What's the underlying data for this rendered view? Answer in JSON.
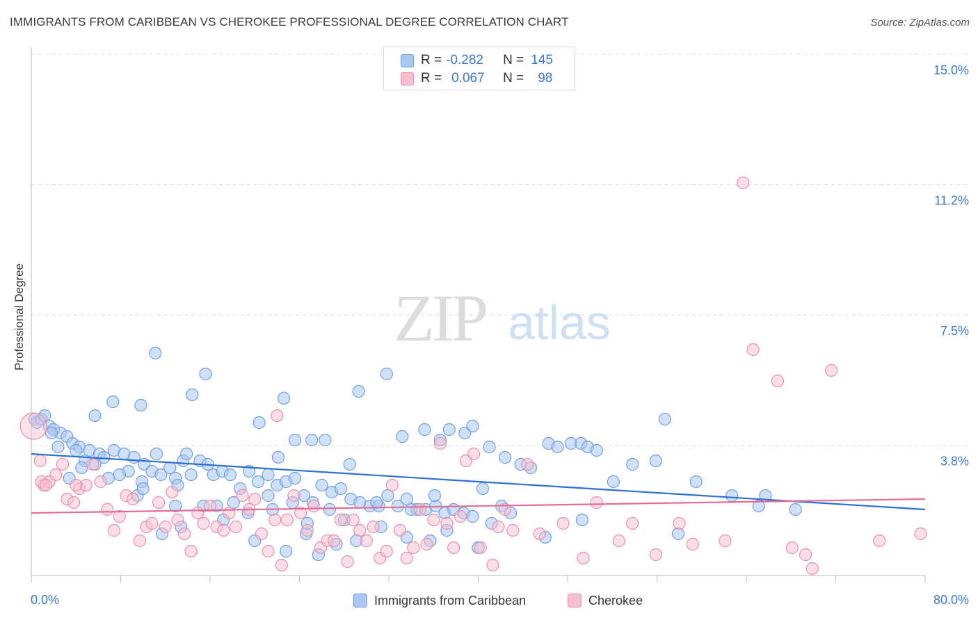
{
  "header": {
    "title": "IMMIGRANTS FROM CARIBBEAN VS CHEROKEE PROFESSIONAL DEGREE CORRELATION CHART",
    "source": "Source: ZipAtlas.com"
  },
  "watermark": {
    "zip": "ZIP",
    "atlas": "atlas"
  },
  "legend": {
    "rows": [
      {
        "r_label": "R =",
        "r_value": "-0.282",
        "n_label": "N =",
        "n_value": "145"
      },
      {
        "r_label": "R =",
        "r_value": "0.067",
        "n_label": "N =",
        "n_value": "98"
      }
    ]
  },
  "colors": {
    "blue_fill": "#aac8f0",
    "blue_stroke": "#6f9fe0",
    "blue_line": "#2a6fd4",
    "pink_fill": "#f6bfd0",
    "pink_stroke": "#ec8eaa",
    "pink_line": "#e46d95",
    "tick_label": "#3b78d0"
  },
  "chart_data": {
    "type": "scatter",
    "title": "IMMIGRANTS FROM CARIBBEAN VS CHEROKEE PROFESSIONAL DEGREE CORRELATION CHART",
    "xlabel": "",
    "ylabel": "Professional Degree",
    "xlim": [
      0,
      80
    ],
    "ylim": [
      0,
      15
    ],
    "x_tick_labels": [
      "0.0%",
      "80.0%"
    ],
    "y_ticks": [
      3.75,
      7.5,
      11.25,
      15.0
    ],
    "y_tick_labels": [
      "3.8%",
      "7.5%",
      "11.2%",
      "15.0%"
    ],
    "grid": true,
    "legend_position": "bottom",
    "series": [
      {
        "name": "Immigrants from Caribbean",
        "r": -0.282,
        "n": 145,
        "trend": [
          [
            0,
            3.5
          ],
          [
            80,
            1.9
          ]
        ],
        "points": [
          [
            0.3,
            4.5
          ],
          [
            0.5,
            4.4
          ],
          [
            0.9,
            4.5
          ],
          [
            1.2,
            4.6
          ],
          [
            1.6,
            4.3
          ],
          [
            2.0,
            4.2
          ],
          [
            2.6,
            4.1
          ],
          [
            3.2,
            4.0
          ],
          [
            1.8,
            4.1
          ],
          [
            2.4,
            3.7
          ],
          [
            3.7,
            3.8
          ],
          [
            4.3,
            3.7
          ],
          [
            5.2,
            3.6
          ],
          [
            6.1,
            3.5
          ],
          [
            4.0,
            3.6
          ],
          [
            5.7,
            3.2
          ],
          [
            3.4,
            2.8
          ],
          [
            4.8,
            3.3
          ],
          [
            6.5,
            3.4
          ],
          [
            7.4,
            3.6
          ],
          [
            8.3,
            3.5
          ],
          [
            9.2,
            3.4
          ],
          [
            10.1,
            3.2
          ],
          [
            8.7,
            3.0
          ],
          [
            7.9,
            2.9
          ],
          [
            9.9,
            2.7
          ],
          [
            10.8,
            3.0
          ],
          [
            11.6,
            2.9
          ],
          [
            12.4,
            3.1
          ],
          [
            11.2,
            3.5
          ],
          [
            12.9,
            2.8
          ],
          [
            13.6,
            3.3
          ],
          [
            14.3,
            2.9
          ],
          [
            13.1,
            2.6
          ],
          [
            15.1,
            3.3
          ],
          [
            15.8,
            3.2
          ],
          [
            16.3,
            2.9
          ],
          [
            17.1,
            3.0
          ],
          [
            17.8,
            2.9
          ],
          [
            18.7,
            2.5
          ],
          [
            19.5,
            3.0
          ],
          [
            20.3,
            2.7
          ],
          [
            21.2,
            2.9
          ],
          [
            22.0,
            2.6
          ],
          [
            22.8,
            2.7
          ],
          [
            23.6,
            2.8
          ],
          [
            24.4,
            2.3
          ],
          [
            25.2,
            2.1
          ],
          [
            26.0,
            2.6
          ],
          [
            26.9,
            2.4
          ],
          [
            27.7,
            2.5
          ],
          [
            28.6,
            2.2
          ],
          [
            29.4,
            2.1
          ],
          [
            30.3,
            2.0
          ],
          [
            31.1,
            2.0
          ],
          [
            31.9,
            2.3
          ],
          [
            32.8,
            2.0
          ],
          [
            33.6,
            2.2
          ],
          [
            34.5,
            1.9
          ],
          [
            35.3,
            1.9
          ],
          [
            36.2,
            2.0
          ],
          [
            37.0,
            1.8
          ],
          [
            37.8,
            1.9
          ],
          [
            38.7,
            1.8
          ],
          [
            39.5,
            1.7
          ],
          [
            40.4,
            2.5
          ],
          [
            41.2,
            1.5
          ],
          [
            42.1,
            2.0
          ],
          [
            42.9,
            1.8
          ],
          [
            11.1,
            6.4
          ],
          [
            15.6,
            5.8
          ],
          [
            14.4,
            5.2
          ],
          [
            7.3,
            5.0
          ],
          [
            9.8,
            4.9
          ],
          [
            5.7,
            4.6
          ],
          [
            20.4,
            4.4
          ],
          [
            22.6,
            5.1
          ],
          [
            29.3,
            5.3
          ],
          [
            31.8,
            5.8
          ],
          [
            23.6,
            3.9
          ],
          [
            22.1,
            3.4
          ],
          [
            25.1,
            3.9
          ],
          [
            28.5,
            3.2
          ],
          [
            26.3,
            3.9
          ],
          [
            33.2,
            4.0
          ],
          [
            35.2,
            4.2
          ],
          [
            36.6,
            3.9
          ],
          [
            37.4,
            4.2
          ],
          [
            38.8,
            4.1
          ],
          [
            39.5,
            4.3
          ],
          [
            41.0,
            3.7
          ],
          [
            42.4,
            3.4
          ],
          [
            43.8,
            3.2
          ],
          [
            44.7,
            3.1
          ],
          [
            46.3,
            3.8
          ],
          [
            47.1,
            3.7
          ],
          [
            48.3,
            3.8
          ],
          [
            49.2,
            3.8
          ],
          [
            49.8,
            3.7
          ],
          [
            50.6,
            3.6
          ],
          [
            52.1,
            2.7
          ],
          [
            53.8,
            3.2
          ],
          [
            55.9,
            3.3
          ],
          [
            56.7,
            4.5
          ],
          [
            59.5,
            2.7
          ],
          [
            62.7,
            2.3
          ],
          [
            65.7,
            2.3
          ],
          [
            65.1,
            2.0
          ],
          [
            68.4,
            1.9
          ],
          [
            57.9,
            1.2
          ],
          [
            46.0,
            1.1
          ],
          [
            49.3,
            1.6
          ],
          [
            40.0,
            0.8
          ],
          [
            29.1,
            1.0
          ],
          [
            25.7,
            0.6
          ],
          [
            22.8,
            0.7
          ],
          [
            11.7,
            1.2
          ],
          [
            13.4,
            1.4
          ],
          [
            17.2,
            1.6
          ],
          [
            20.0,
            1.0
          ],
          [
            24.6,
            1.2
          ],
          [
            27.3,
            0.9
          ],
          [
            31.3,
            1.4
          ],
          [
            33.6,
            1.1
          ],
          [
            35.7,
            1.0
          ],
          [
            37.2,
            1.3
          ],
          [
            28.0,
            1.6
          ],
          [
            16.6,
            2.0
          ],
          [
            9.5,
            2.3
          ],
          [
            18.1,
            2.1
          ],
          [
            10.0,
            2.5
          ],
          [
            6.9,
            2.8
          ],
          [
            4.5,
            3.1
          ],
          [
            13.9,
            3.5
          ],
          [
            12.9,
            2.0
          ],
          [
            24.7,
            1.5
          ],
          [
            19.4,
            1.8
          ],
          [
            15.4,
            2.0
          ],
          [
            26.7,
            1.9
          ],
          [
            23.4,
            2.1
          ],
          [
            21.2,
            2.3
          ],
          [
            21.6,
            1.9
          ],
          [
            30.9,
            2.1
          ],
          [
            34.0,
            1.9
          ],
          [
            36.1,
            2.3
          ]
        ]
      },
      {
        "name": "Cherokee",
        "r": 0.067,
        "n": 98,
        "trend": [
          [
            0,
            1.8
          ],
          [
            80,
            2.2
          ]
        ],
        "points": [
          [
            0.2,
            4.3
          ],
          [
            0.8,
            3.3
          ],
          [
            1.1,
            2.6
          ],
          [
            1.6,
            2.7
          ],
          [
            2.2,
            2.9
          ],
          [
            2.8,
            3.2
          ],
          [
            3.2,
            2.2
          ],
          [
            3.8,
            2.1
          ],
          [
            4.3,
            2.5
          ],
          [
            4.9,
            2.6
          ],
          [
            5.5,
            3.2
          ],
          [
            6.2,
            2.7
          ],
          [
            6.8,
            1.9
          ],
          [
            7.4,
            1.3
          ],
          [
            7.9,
            1.7
          ],
          [
            8.5,
            2.3
          ],
          [
            9.1,
            2.2
          ],
          [
            9.7,
            1.0
          ],
          [
            10.3,
            1.4
          ],
          [
            10.8,
            1.5
          ],
          [
            11.4,
            2.1
          ],
          [
            12.0,
            1.4
          ],
          [
            12.6,
            2.4
          ],
          [
            13.1,
            1.6
          ],
          [
            13.7,
            1.2
          ],
          [
            14.3,
            0.7
          ],
          [
            14.9,
            1.8
          ],
          [
            15.4,
            1.5
          ],
          [
            16.0,
            2.0
          ],
          [
            16.6,
            1.4
          ],
          [
            17.2,
            1.3
          ],
          [
            17.7,
            1.8
          ],
          [
            18.3,
            1.4
          ],
          [
            18.9,
            2.3
          ],
          [
            19.5,
            1.9
          ],
          [
            20.0,
            2.2
          ],
          [
            20.6,
            1.2
          ],
          [
            21.2,
            0.7
          ],
          [
            21.8,
            1.6
          ],
          [
            22.4,
            0.3
          ],
          [
            22.9,
            1.6
          ],
          [
            23.5,
            2.3
          ],
          [
            24.1,
            1.8
          ],
          [
            24.7,
            1.3
          ],
          [
            25.3,
            2.0
          ],
          [
            25.9,
            0.8
          ],
          [
            26.5,
            1.0
          ],
          [
            27.1,
            1.0
          ],
          [
            27.7,
            1.6
          ],
          [
            28.3,
            0.4
          ],
          [
            28.8,
            1.6
          ],
          [
            29.4,
            1.3
          ],
          [
            30.0,
            1.0
          ],
          [
            30.6,
            1.4
          ],
          [
            31.2,
            0.5
          ],
          [
            31.8,
            0.7
          ],
          [
            32.3,
            2.6
          ],
          [
            33.0,
            1.3
          ],
          [
            33.6,
            0.5
          ],
          [
            34.2,
            0.8
          ],
          [
            34.8,
            1.9
          ],
          [
            35.4,
            0.9
          ],
          [
            36.0,
            1.6
          ],
          [
            36.6,
            3.8
          ],
          [
            37.2,
            1.5
          ],
          [
            37.8,
            0.8
          ],
          [
            38.4,
            1.7
          ],
          [
            38.9,
            3.3
          ],
          [
            39.6,
            3.5
          ],
          [
            40.2,
            0.8
          ],
          [
            41.3,
            0.3
          ],
          [
            41.8,
            1.4
          ],
          [
            42.4,
            1.9
          ],
          [
            43.1,
            1.3
          ],
          [
            44.4,
            3.2
          ],
          [
            45.5,
            1.2
          ],
          [
            47.6,
            1.5
          ],
          [
            49.4,
            0.5
          ],
          [
            50.6,
            2.1
          ],
          [
            52.6,
            1.0
          ],
          [
            53.8,
            1.5
          ],
          [
            55.9,
            0.6
          ],
          [
            58.0,
            1.5
          ],
          [
            59.2,
            0.9
          ],
          [
            62.1,
            1.0
          ],
          [
            63.7,
            11.3
          ],
          [
            64.6,
            6.5
          ],
          [
            66.8,
            5.6
          ],
          [
            68.1,
            0.8
          ],
          [
            69.3,
            0.6
          ],
          [
            69.9,
            0.2
          ],
          [
            71.6,
            5.9
          ],
          [
            75.9,
            1.0
          ],
          [
            79.6,
            1.2
          ],
          [
            0.9,
            2.7
          ],
          [
            1.3,
            2.6
          ],
          [
            4.0,
            2.6
          ],
          [
            22.0,
            4.6
          ]
        ]
      }
    ]
  }
}
